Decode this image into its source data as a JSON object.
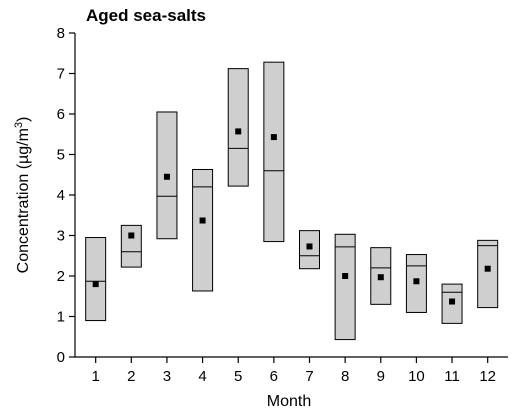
{
  "chart_data": {
    "type": "box",
    "title": "Aged sea-salts",
    "xlabel": "Month",
    "ylabel_main": "Concentration (µg/m",
    "ylabel_sup": "3",
    "ylabel_tail": ")",
    "ylim": [
      0,
      8
    ],
    "yticks": [
      0,
      1,
      2,
      3,
      4,
      5,
      6,
      7,
      8
    ],
    "categories": [
      "1",
      "2",
      "3",
      "4",
      "5",
      "6",
      "7",
      "8",
      "9",
      "10",
      "11",
      "12"
    ],
    "box_color": "#cfcfcf",
    "boxes": [
      {
        "q1": 0.9,
        "median": 1.87,
        "q3": 2.95,
        "mean": 1.8
      },
      {
        "q1": 2.22,
        "median": 2.6,
        "q3": 3.25,
        "mean": 3.0
      },
      {
        "q1": 2.92,
        "median": 3.97,
        "q3": 6.05,
        "mean": 4.45
      },
      {
        "q1": 1.63,
        "median": 4.2,
        "q3": 4.63,
        "mean": 3.37
      },
      {
        "q1": 4.22,
        "median": 5.15,
        "q3": 7.12,
        "mean": 5.57
      },
      {
        "q1": 2.85,
        "median": 4.6,
        "q3": 7.28,
        "mean": 5.43
      },
      {
        "q1": 2.18,
        "median": 2.5,
        "q3": 3.12,
        "mean": 2.73
      },
      {
        "q1": 0.43,
        "median": 2.72,
        "q3": 3.03,
        "mean": 2.0
      },
      {
        "q1": 1.3,
        "median": 2.2,
        "q3": 2.7,
        "mean": 1.97
      },
      {
        "q1": 1.1,
        "median": 2.25,
        "q3": 2.53,
        "mean": 1.87
      },
      {
        "q1": 0.83,
        "median": 1.6,
        "q3": 1.8,
        "mean": 1.37
      },
      {
        "q1": 1.22,
        "median": 2.75,
        "q3": 2.88,
        "mean": 2.18
      }
    ]
  }
}
